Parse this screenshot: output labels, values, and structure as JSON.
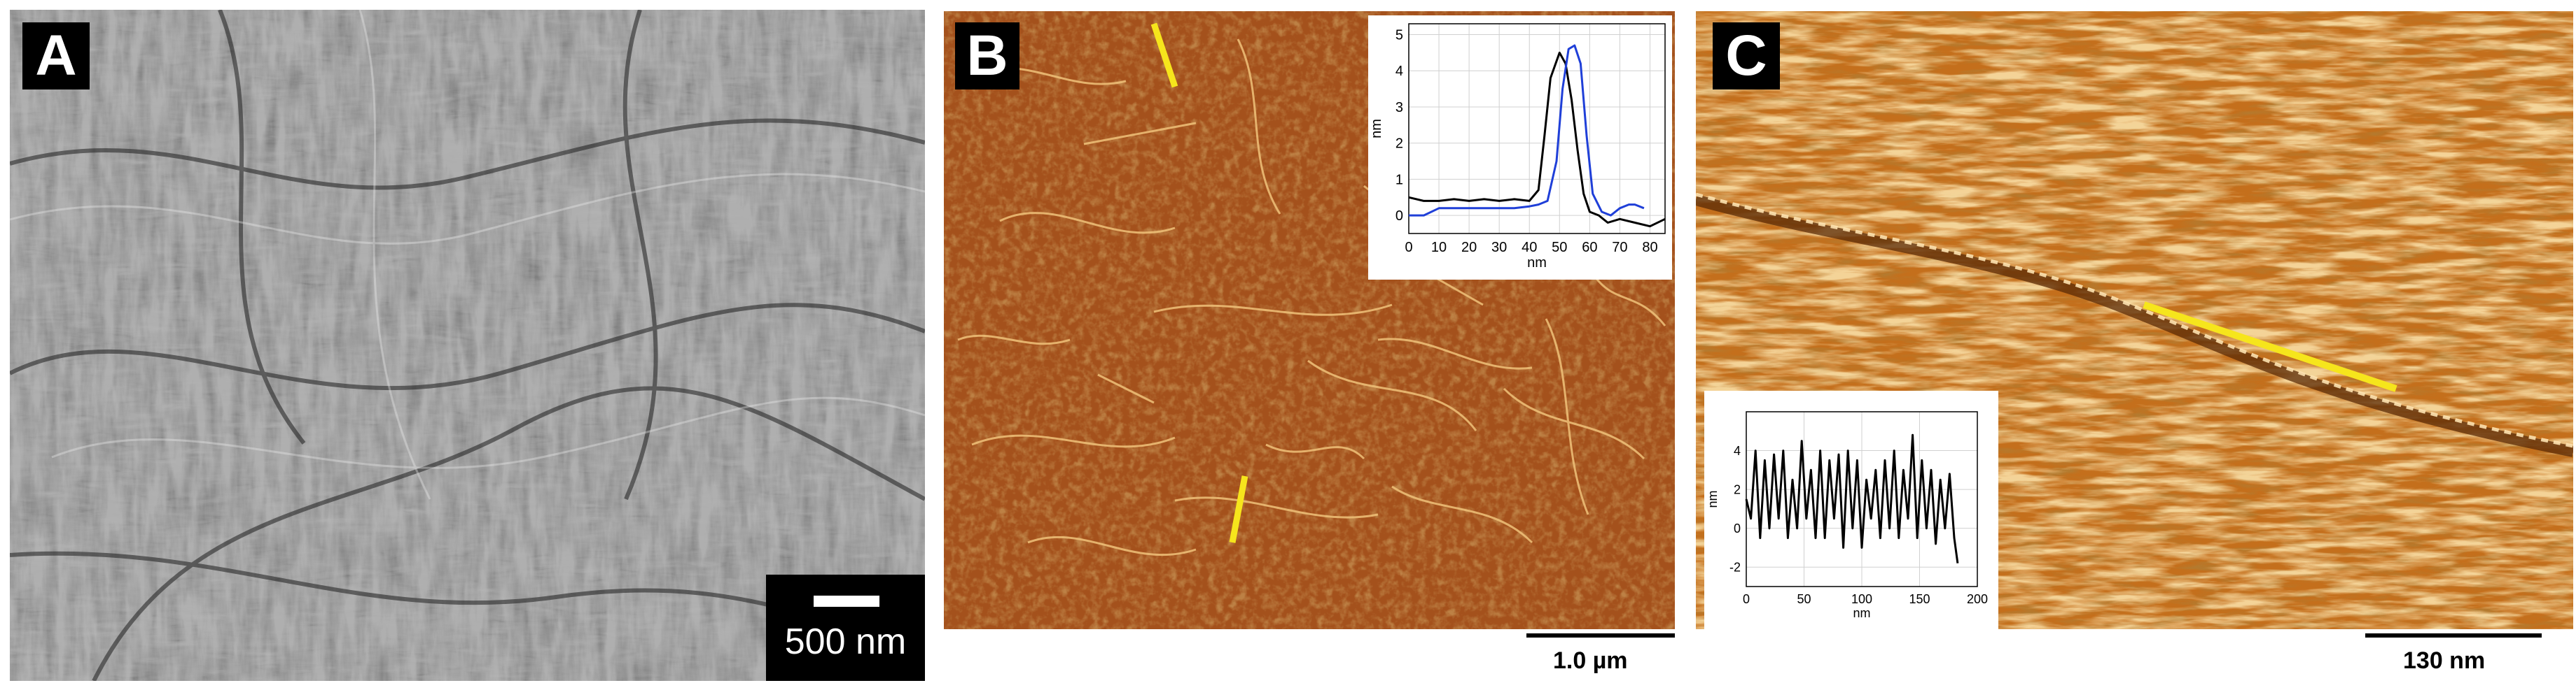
{
  "panels": {
    "A": {
      "letter": "A",
      "scalebar_label": "500 nm"
    },
    "B": {
      "letter": "B",
      "scalebar_label": "1.0 µm",
      "inset_chart": {
        "type": "line",
        "xlabel": "nm",
        "ylabel": "nm",
        "xlim": [
          0,
          85
        ],
        "ylim": [
          -0.5,
          5.3
        ],
        "xticks": [
          0,
          10,
          20,
          30,
          40,
          50,
          60,
          70,
          80
        ],
        "yticks": [
          0,
          1,
          2,
          3,
          4,
          5
        ],
        "series": [
          {
            "color": "#000000",
            "x": [
              0,
              5,
              10,
              15,
              20,
              25,
              30,
              35,
              40,
              43,
              45,
              47,
              50,
              52,
              54,
              56,
              58,
              60,
              63,
              66,
              70,
              75,
              80,
              85
            ],
            "y": [
              0.5,
              0.4,
              0.4,
              0.45,
              0.4,
              0.45,
              0.4,
              0.45,
              0.4,
              0.7,
              2.2,
              3.8,
              4.5,
              4.2,
              3.2,
              1.8,
              0.6,
              0.1,
              0.0,
              -0.2,
              -0.1,
              -0.2,
              -0.3,
              -0.1
            ]
          },
          {
            "color": "#1f3fd8",
            "x": [
              0,
              5,
              10,
              15,
              20,
              25,
              30,
              35,
              40,
              43,
              46,
              49,
              51,
              53,
              55,
              57,
              59,
              61,
              64,
              67,
              70,
              73,
              75,
              78
            ],
            "y": [
              0.0,
              0.0,
              0.2,
              0.2,
              0.2,
              0.2,
              0.2,
              0.2,
              0.25,
              0.3,
              0.4,
              1.5,
              3.5,
              4.6,
              4.7,
              4.2,
              2.2,
              0.6,
              0.1,
              0.0,
              0.2,
              0.3,
              0.3,
              0.2
            ]
          }
        ]
      }
    },
    "C": {
      "letter": "C",
      "scalebar_label": "130 nm",
      "inset_chart": {
        "type": "line",
        "xlabel": "nm",
        "ylabel": "nm",
        "xlim": [
          0,
          200
        ],
        "ylim": [
          -3,
          6
        ],
        "xticks": [
          0,
          50,
          100,
          150,
          200
        ],
        "yticks": [
          -2,
          0,
          2,
          4
        ],
        "series": [
          {
            "color": "#000000",
            "x": [
              0,
              4,
              8,
              12,
              16,
              20,
              24,
              28,
              32,
              36,
              40,
              44,
              48,
              52,
              56,
              60,
              64,
              68,
              72,
              76,
              80,
              84,
              88,
              92,
              96,
              100,
              104,
              108,
              112,
              116,
              120,
              124,
              128,
              132,
              136,
              140,
              144,
              148,
              152,
              156,
              160,
              164,
              168,
              172,
              176,
              180,
              183
            ],
            "y": [
              1.5,
              0.5,
              4.0,
              -0.5,
              3.5,
              0.0,
              3.8,
              0.5,
              4.0,
              -0.5,
              2.5,
              0.0,
              4.5,
              0.5,
              3.0,
              -0.5,
              4.0,
              -0.5,
              3.5,
              0.5,
              3.8,
              -1.0,
              4.0,
              0.0,
              3.5,
              -1.0,
              2.5,
              0.5,
              3.0,
              -0.5,
              3.5,
              0.0,
              4.0,
              -0.5,
              3.0,
              0.5,
              4.8,
              -0.5,
              3.5,
              0.0,
              3.0,
              -0.8,
              2.5,
              0.0,
              2.8,
              -0.5,
              -1.8
            ]
          }
        ]
      }
    }
  }
}
